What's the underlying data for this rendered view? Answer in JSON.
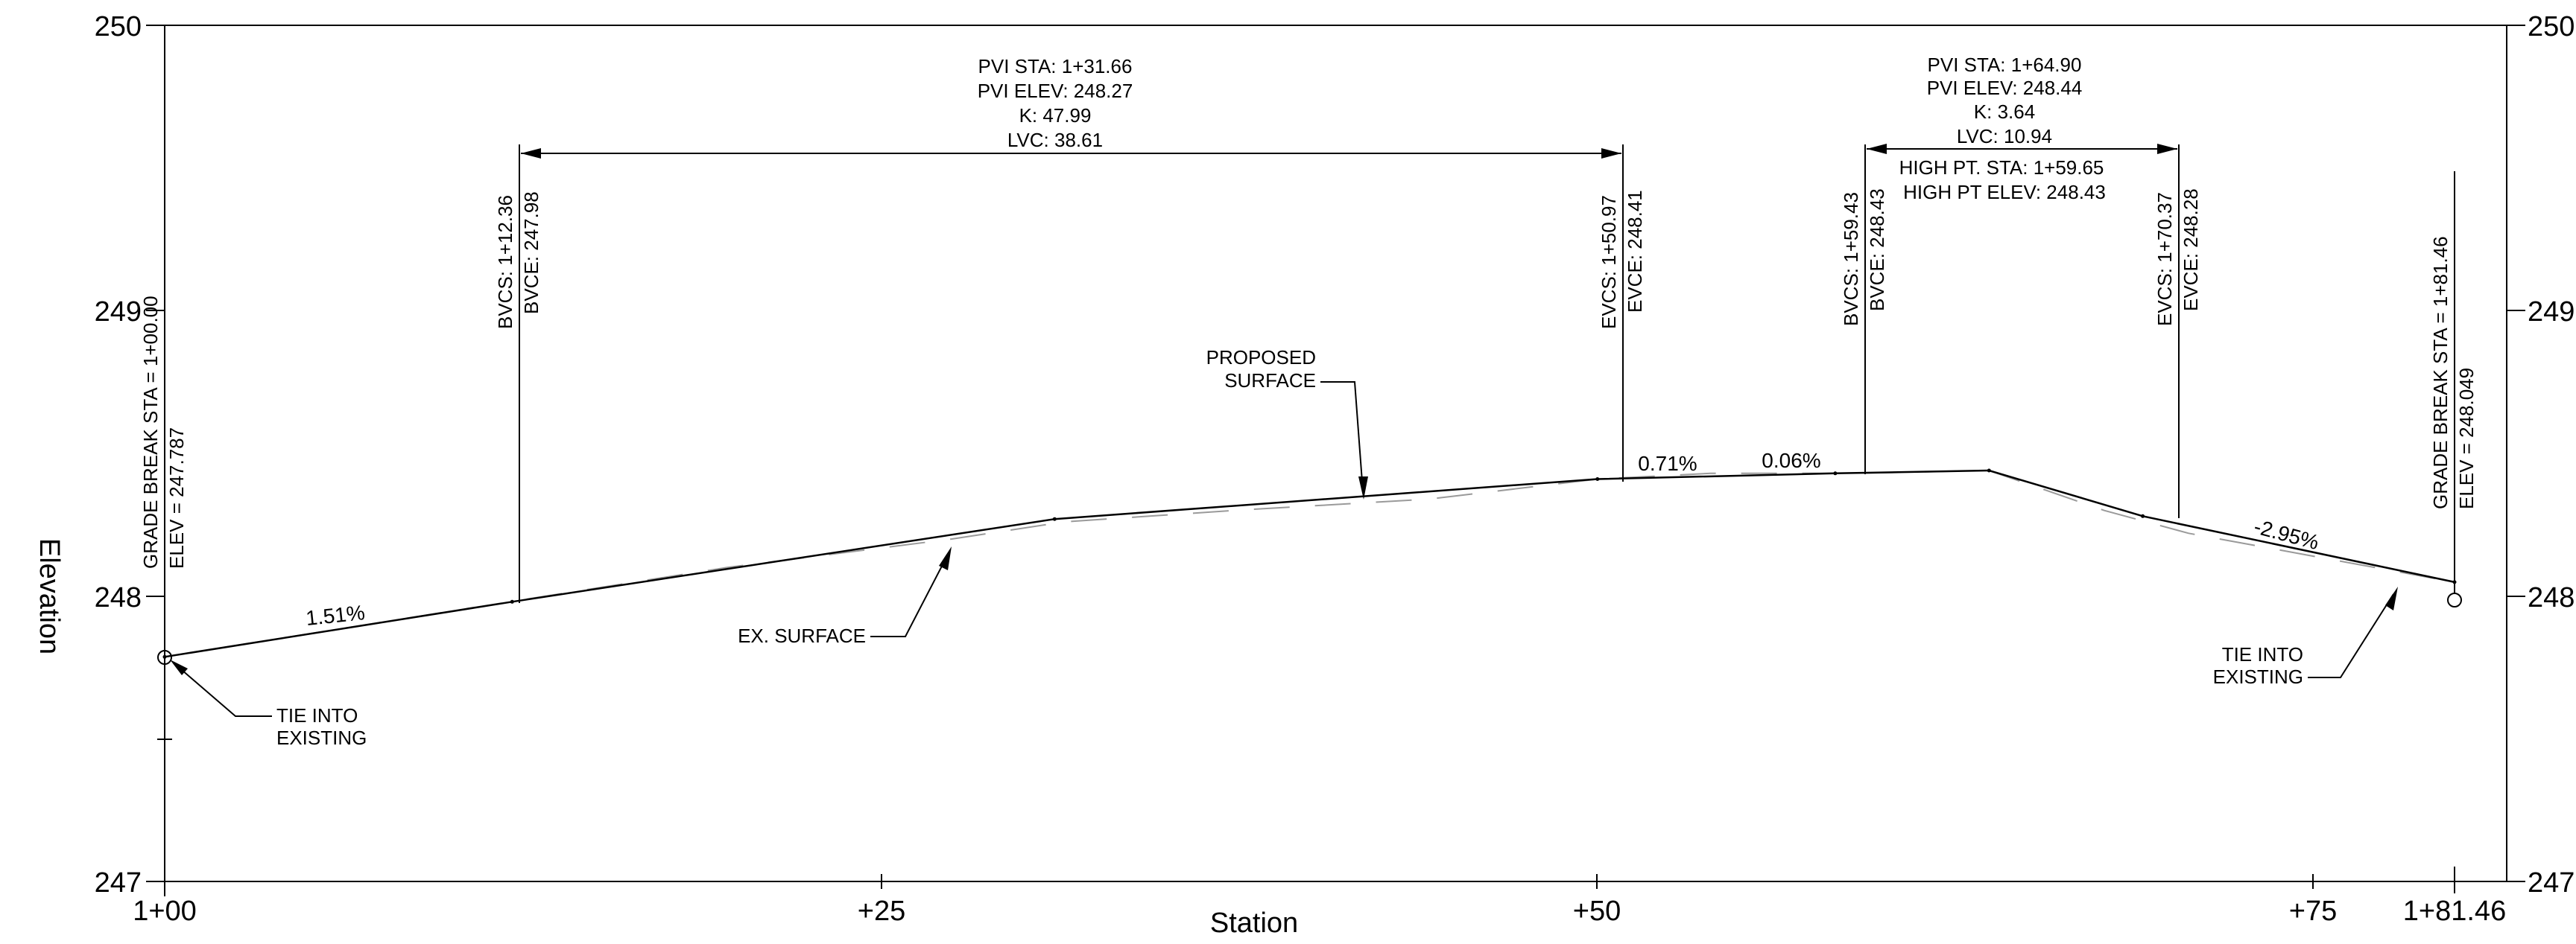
{
  "axes": {
    "y_label": "Elevation",
    "x_label": "Station",
    "y_ticks": [
      {
        "value": 250,
        "label": "250"
      },
      {
        "value": 249,
        "label": "249"
      },
      {
        "value": 248,
        "label": "248"
      },
      {
        "value": 247,
        "label": "247"
      }
    ],
    "x_ticks": [
      {
        "value": 0,
        "label": "1+00"
      },
      {
        "value": 25,
        "label": "+25"
      },
      {
        "value": 50,
        "label": "+50"
      },
      {
        "value": 75,
        "label": "+75"
      },
      {
        "value": 81.46,
        "label": "1+81.46"
      }
    ],
    "xlim": [
      0,
      81.46
    ],
    "ylim": [
      247,
      250
    ]
  },
  "proposed_profile": [
    [
      0,
      247.787
    ],
    [
      12.36,
      247.98
    ],
    [
      31.66,
      248.27
    ],
    [
      50.97,
      248.41
    ],
    [
      59.43,
      248.43
    ],
    [
      64.9,
      248.44
    ],
    [
      70.37,
      248.28
    ],
    [
      81.46,
      248.049
    ]
  ],
  "existing_profile": [
    [
      0,
      247.787
    ],
    [
      11,
      247.96
    ],
    [
      20,
      248.1
    ],
    [
      28,
      248.2
    ],
    [
      32,
      248.26
    ],
    [
      38,
      248.3
    ],
    [
      45,
      248.34
    ],
    [
      50.97,
      248.41
    ],
    [
      55,
      248.43
    ],
    [
      60,
      248.43
    ],
    [
      64.9,
      248.44
    ],
    [
      69,
      248.3
    ],
    [
      72,
      248.22
    ],
    [
      81.46,
      248.049
    ]
  ],
  "grades": [
    "1.51%",
    "0.71%",
    "0.06%",
    "-2.95%"
  ],
  "curves": [
    {
      "pvi_sta": "PVI STA: 1+31.66",
      "pvi_elev": "PVI ELEV: 248.27",
      "k": "K: 47.99",
      "lvc": "LVC: 38.61",
      "bvcs": "BVCS: 1+12.36",
      "bvce": "BVCE: 247.98",
      "evcs": "EVCS: 1+50.97",
      "evce": "EVCE: 248.41"
    },
    {
      "pvi_sta": "PVI STA: 1+64.90",
      "pvi_elev": "PVI ELEV: 248.44",
      "k": "K: 3.64",
      "lvc": "LVC: 10.94",
      "high_pt_sta": "HIGH PT. STA: 1+59.65",
      "high_pt_elev": "HIGH PT ELEV: 248.43",
      "bvcs": "BVCS: 1+59.43",
      "bvce": "BVCE: 248.43",
      "evcs": "EVCS: 1+70.37",
      "evce": "EVCE: 248.28"
    }
  ],
  "grade_breaks": [
    {
      "sta": "GRADE BREAK STA = 1+00.00",
      "elev": "ELEV =  247.787"
    },
    {
      "sta": "GRADE BREAK STA = 1+81.46",
      "elev": "ELEV =  248.049"
    }
  ],
  "callouts": {
    "proposed_surface_1": "PROPOSED",
    "proposed_surface_2": "SURFACE",
    "ex_surface": "EX. SURFACE",
    "tie_left_1": "TIE INTO",
    "tie_left_2": "EXISTING",
    "tie_right_1": "TIE INTO",
    "tie_right_2": "EXISTING"
  }
}
